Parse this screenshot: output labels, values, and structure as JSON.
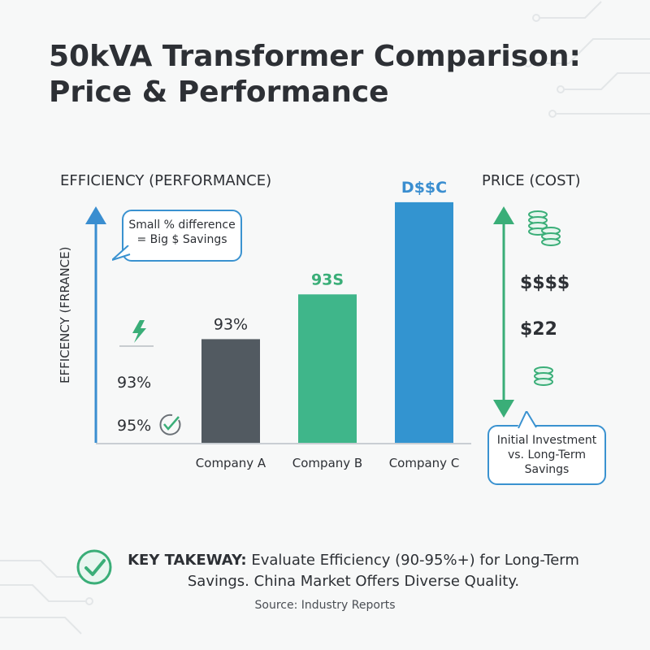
{
  "title": "50kVA Transformer Comparison: Price & Performance",
  "left_axis_heading": "EFFICIENCY (PERFORMANCE)",
  "right_axis_heading": "PRICE (COST)",
  "y_axis_label": "EFFICENCY (FRRANCE)",
  "callout_left": [
    "Small % difference",
    "= Big $ Savings"
  ],
  "callout_right": [
    "Initial Investment",
    "vs. Long-Term",
    "Savings"
  ],
  "efficiency_markers": [
    "93%",
    "95%"
  ],
  "price_markers": [
    "$$$$",
    "$22"
  ],
  "takeaway": {
    "lead": "KEY TAKEWAY:",
    "text": "Evaluate Efficiency (90-95%+) for Long-Term Savings. China Market Offers Diverse Quality."
  },
  "source": "Source: Industry Reports",
  "colors": {
    "company_a": "#525a61",
    "company_b": "#3fb68a",
    "company_c": "#3394d0",
    "accent_green": "#3aae78",
    "accent_blue": "#3a8ed0"
  },
  "icons": [
    "lightning-icon",
    "check-gauge-icon",
    "coin-stack-icon",
    "check-circle-icon",
    "circuit-decoration-icon"
  ],
  "chart_data": {
    "type": "bar",
    "categories": [
      "Company A",
      "Company B",
      "Company C"
    ],
    "values": [
      40.5,
      58,
      94
    ],
    "data_labels": [
      "93%",
      "93S",
      "D$$C"
    ],
    "label_colors": [
      "#2d3035",
      "#3aae78",
      "#3a8ed0"
    ],
    "bar_colors": [
      "#525a61",
      "#3fb68a",
      "#3394d0"
    ],
    "ylim": [
      0,
      100
    ],
    "grid": false,
    "legend": "none"
  }
}
